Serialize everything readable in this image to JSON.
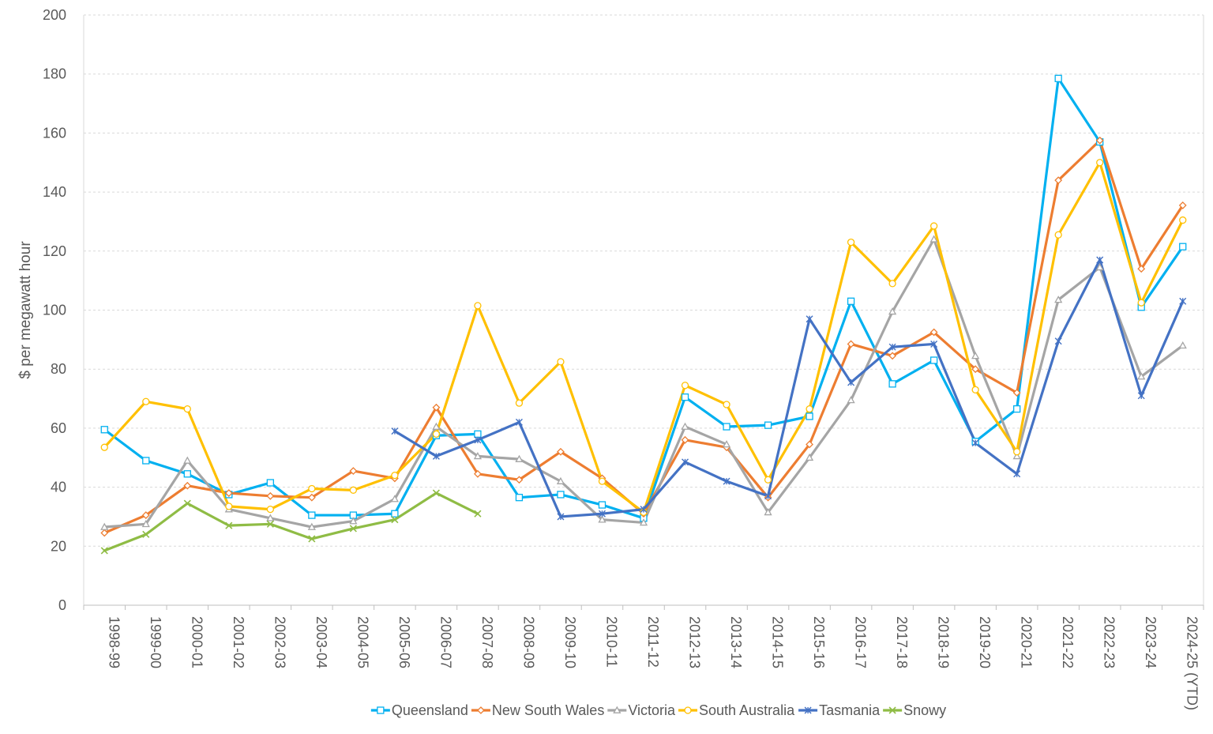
{
  "chart_data": {
    "type": "line",
    "title": "",
    "xlabel": "",
    "ylabel": "$ per megawatt hour",
    "ylim": [
      0,
      200
    ],
    "yticks": [
      0,
      20,
      40,
      60,
      80,
      100,
      120,
      140,
      160,
      180,
      200
    ],
    "grid": "horizontal-dashed",
    "legend_position": "bottom",
    "categories": [
      "1998-99",
      "1999-00",
      "2000-01",
      "2001-02",
      "2002-03",
      "2003-04",
      "2004-05",
      "2005-06",
      "2006-07",
      "2007-08",
      "2008-09",
      "2009-10",
      "2010-11",
      "2011-12",
      "2012-13",
      "2013-14",
      "2014-15",
      "2015-16",
      "2016-17",
      "2017-18",
      "2018-19",
      "2019-20",
      "2020-21",
      "2021-22",
      "2022-23",
      "2023-24",
      "2024-25 (YTD)"
    ],
    "series": [
      {
        "name": "Queensland",
        "color": "#00B0F0",
        "marker": "square",
        "values": [
          59.5,
          49,
          44.5,
          37.5,
          41.5,
          30.5,
          30.5,
          31,
          57.5,
          58,
          36.5,
          37.5,
          34,
          29.5,
          70.5,
          60.5,
          61,
          64,
          103,
          75,
          83,
          55.5,
          66.5,
          178.5,
          157,
          101,
          121.5
        ]
      },
      {
        "name": "New South Wales",
        "color": "#ED7D31",
        "marker": "diamond",
        "values": [
          24.5,
          30.5,
          40.5,
          38,
          37,
          36.5,
          45.5,
          43,
          67,
          44.5,
          42.5,
          52,
          43,
          31,
          56,
          53.5,
          36.5,
          54.5,
          88.5,
          84.5,
          92.5,
          80,
          72,
          144,
          157.5,
          114,
          135.5
        ]
      },
      {
        "name": "Victoria",
        "color": "#A5A5A5",
        "marker": "triangle",
        "values": [
          26.5,
          27.5,
          49,
          32.5,
          29.5,
          26.5,
          28.5,
          36,
          60.5,
          50.5,
          49.5,
          42,
          29,
          28,
          60.5,
          54.5,
          31.5,
          50,
          69.5,
          99.5,
          124,
          84.5,
          50.5,
          103.5,
          114.5,
          77.5,
          88
        ]
      },
      {
        "name": "South Australia",
        "color": "#FFC000",
        "marker": "circle",
        "values": [
          53.5,
          69,
          66.5,
          33.5,
          32.5,
          39.5,
          39,
          44,
          58,
          101.5,
          68.5,
          82.5,
          42,
          31.5,
          74.5,
          68,
          42.5,
          66.5,
          123,
          109,
          128.5,
          73,
          52,
          125.5,
          150,
          102.5,
          130.5
        ]
      },
      {
        "name": "Tasmania",
        "color": "#4472C4",
        "marker": "star",
        "values": [
          null,
          null,
          null,
          null,
          null,
          null,
          null,
          59,
          50.5,
          56,
          62,
          30,
          31,
          32.5,
          48.5,
          42,
          37,
          97,
          75.5,
          87.5,
          88.5,
          55,
          44.5,
          89.5,
          117,
          71,
          103
        ]
      },
      {
        "name": "Snowy",
        "color": "#8FBC45",
        "marker": "x",
        "values": [
          18.5,
          24,
          34.5,
          27,
          27.5,
          22.5,
          26,
          29,
          38,
          31,
          null,
          null,
          null,
          null,
          null,
          null,
          null,
          null,
          null,
          null,
          null,
          null,
          null,
          null,
          null,
          null,
          null
        ]
      }
    ]
  }
}
